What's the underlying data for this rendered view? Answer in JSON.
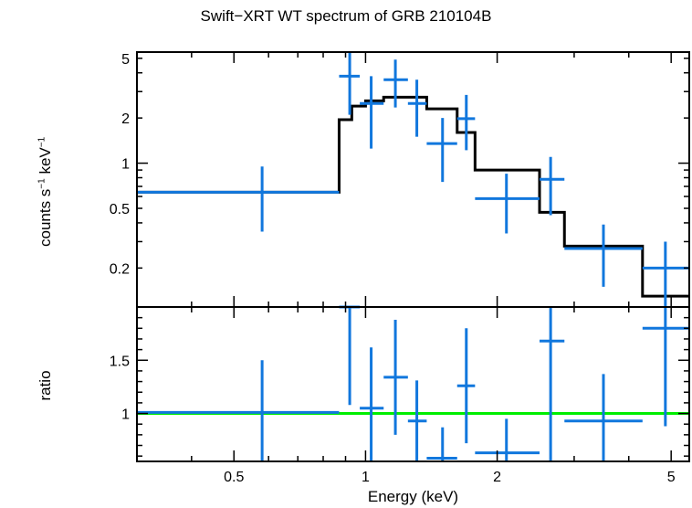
{
  "chart_data": [
    {
      "type": "scatter",
      "panel": "spectrum",
      "title": "Swift−XRT WT spectrum of GRB 210104B",
      "ylabel_main": "counts s",
      "ylabel_sup1": "−1",
      "ylabel_mid": " keV",
      "ylabel_sup2": "−1",
      "xscale": "log",
      "yscale": "log",
      "xlim": [
        0.3,
        5.5
      ],
      "ylim": [
        0.11,
        5.5
      ],
      "yticks": [
        0.2,
        0.5,
        1,
        2,
        5
      ],
      "ytick_labels": [
        "0.2",
        "0.5",
        "1",
        "2",
        "5"
      ],
      "data_color": "#1177dd",
      "model_color": "#000000",
      "data": [
        {
          "x": 0.58,
          "xlo": 0.3,
          "xhi": 0.87,
          "y": 0.64,
          "ylo": 0.35,
          "yhi": 0.95
        },
        {
          "x": 0.92,
          "xlo": 0.87,
          "xhi": 0.97,
          "y": 3.8,
          "ylo": 2.1,
          "yhi": 5.5
        },
        {
          "x": 1.03,
          "xlo": 0.97,
          "xhi": 1.1,
          "y": 2.5,
          "ylo": 1.25,
          "yhi": 3.8
        },
        {
          "x": 1.17,
          "xlo": 1.1,
          "xhi": 1.25,
          "y": 3.6,
          "ylo": 2.35,
          "yhi": 4.9
        },
        {
          "x": 1.31,
          "xlo": 1.25,
          "xhi": 1.38,
          "y": 2.5,
          "ylo": 1.5,
          "yhi": 3.6
        },
        {
          "x": 1.5,
          "xlo": 1.38,
          "xhi": 1.62,
          "y": 1.35,
          "ylo": 0.75,
          "yhi": 2.0
        },
        {
          "x": 1.7,
          "xlo": 1.62,
          "xhi": 1.78,
          "y": 1.98,
          "ylo": 1.22,
          "yhi": 2.85
        },
        {
          "x": 2.1,
          "xlo": 1.78,
          "xhi": 2.5,
          "y": 0.58,
          "ylo": 0.34,
          "yhi": 0.85
        },
        {
          "x": 2.65,
          "xlo": 2.5,
          "xhi": 2.85,
          "y": 0.78,
          "ylo": 0.45,
          "yhi": 1.1
        },
        {
          "x": 3.5,
          "xlo": 2.85,
          "xhi": 4.3,
          "y": 0.27,
          "ylo": 0.15,
          "yhi": 0.39
        },
        {
          "x": 4.85,
          "xlo": 4.3,
          "xhi": 5.5,
          "y": 0.2,
          "ylo": 0.11,
          "yhi": 0.3
        }
      ],
      "model": [
        {
          "xlo": 0.3,
          "xhi": 0.87,
          "y": 0.64
        },
        {
          "xlo": 0.87,
          "xhi": 0.93,
          "y": 1.95
        },
        {
          "xlo": 0.93,
          "xhi": 1.0,
          "y": 2.4
        },
        {
          "xlo": 1.0,
          "xhi": 1.1,
          "y": 2.6
        },
        {
          "xlo": 1.1,
          "xhi": 1.38,
          "y": 2.75
        },
        {
          "xlo": 1.38,
          "xhi": 1.62,
          "y": 2.3
        },
        {
          "xlo": 1.62,
          "xhi": 1.78,
          "y": 1.6
        },
        {
          "xlo": 1.78,
          "xhi": 2.5,
          "y": 0.9
        },
        {
          "xlo": 2.5,
          "xhi": 2.85,
          "y": 0.47
        },
        {
          "xlo": 2.85,
          "xhi": 4.3,
          "y": 0.28
        },
        {
          "xlo": 4.3,
          "xhi": 5.5,
          "y": 0.13
        }
      ]
    },
    {
      "type": "scatter",
      "panel": "ratio",
      "xlabel": "Energy (keV)",
      "ylabel": "ratio",
      "xscale": "log",
      "yscale": "linear",
      "xlim": [
        0.3,
        5.5
      ],
      "ylim": [
        0.55,
        2.0
      ],
      "xticks": [
        0.5,
        1,
        2,
        5
      ],
      "xtick_labels": [
        "0.5",
        "1",
        "2",
        "5"
      ],
      "yticks": [
        1,
        1.5
      ],
      "ytick_labels": [
        "1",
        "1.5"
      ],
      "reference_line": 1,
      "reference_color": "#00ee00",
      "data_color": "#1177dd",
      "data": [
        {
          "x": 0.58,
          "xlo": 0.3,
          "xhi": 0.87,
          "y": 1.01,
          "ylo": 0.55,
          "yhi": 1.5
        },
        {
          "x": 0.92,
          "xlo": 0.87,
          "xhi": 0.97,
          "y": 2.0,
          "ylo": 1.08,
          "yhi": 2.0
        },
        {
          "x": 1.03,
          "xlo": 0.97,
          "xhi": 1.1,
          "y": 1.05,
          "ylo": 0.55,
          "yhi": 1.62
        },
        {
          "x": 1.17,
          "xlo": 1.1,
          "xhi": 1.25,
          "y": 1.34,
          "ylo": 0.8,
          "yhi": 1.88
        },
        {
          "x": 1.31,
          "xlo": 1.25,
          "xhi": 1.38,
          "y": 0.93,
          "ylo": 0.55,
          "yhi": 1.31
        },
        {
          "x": 1.5,
          "xlo": 1.38,
          "xhi": 1.62,
          "y": 0.58,
          "ylo": 0.55,
          "yhi": 0.87
        },
        {
          "x": 1.7,
          "xlo": 1.62,
          "xhi": 1.78,
          "y": 1.26,
          "ylo": 0.72,
          "yhi": 1.8
        },
        {
          "x": 2.1,
          "xlo": 1.78,
          "xhi": 2.5,
          "y": 0.63,
          "ylo": 0.55,
          "yhi": 0.95
        },
        {
          "x": 2.65,
          "xlo": 2.5,
          "xhi": 2.85,
          "y": 1.68,
          "ylo": 0.55,
          "yhi": 2.0
        },
        {
          "x": 3.5,
          "xlo": 2.85,
          "xhi": 4.3,
          "y": 0.93,
          "ylo": 0.55,
          "yhi": 1.37
        },
        {
          "x": 4.85,
          "xlo": 4.3,
          "xhi": 5.5,
          "y": 1.8,
          "ylo": 0.88,
          "yhi": 2.0
        }
      ]
    }
  ]
}
